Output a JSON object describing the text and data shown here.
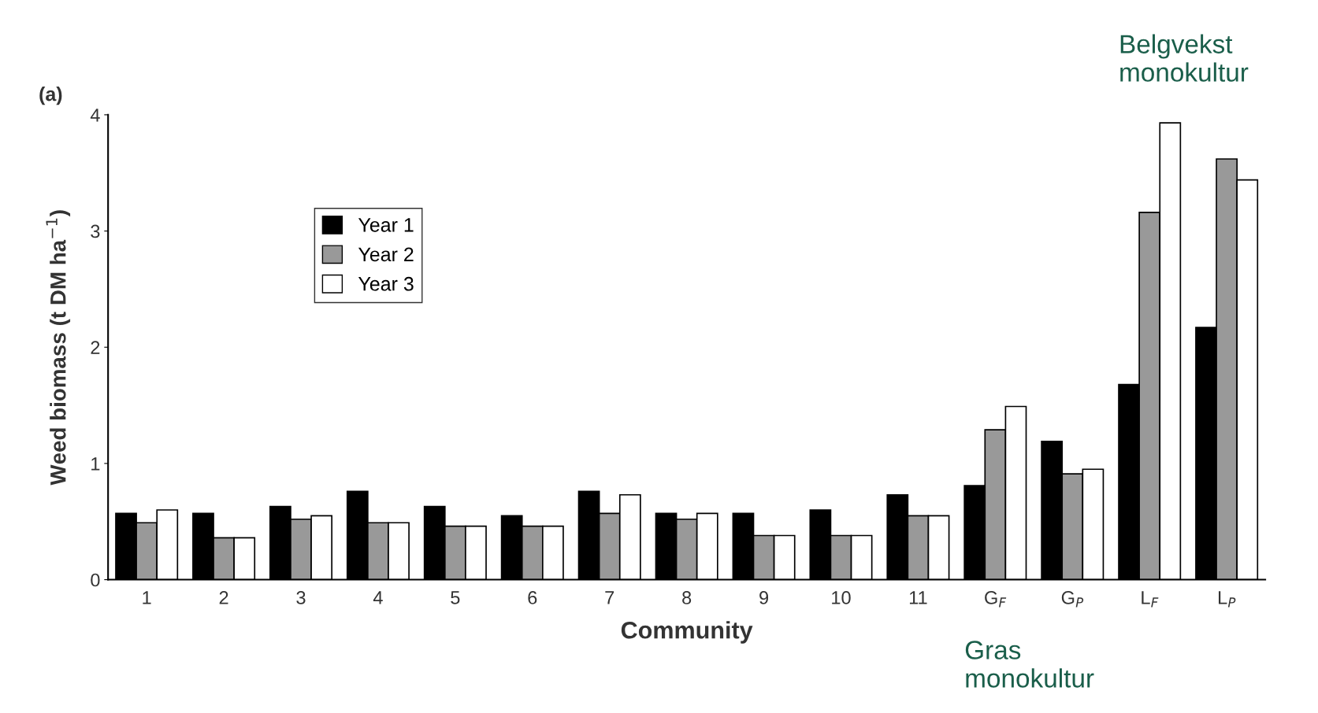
{
  "chart_data": {
    "type": "bar",
    "title": "(a)",
    "xlabel": "Community",
    "ylabel": "Weed biomass (t DM ha$^{−1}$)",
    "categories": [
      "1",
      "2",
      "3",
      "4",
      "5",
      "6",
      "7",
      "8",
      "9",
      "10",
      "11",
      "G$_{F}$",
      "G$_{P}$",
      "L$_{F}$",
      "L$_{P}$"
    ],
    "series": [
      {
        "name": "Year 1",
        "color": "#000000",
        "values": [
          0.57,
          0.57,
          0.63,
          0.76,
          0.63,
          0.55,
          0.76,
          0.57,
          0.57,
          0.6,
          0.73,
          0.81,
          1.19,
          1.68,
          2.17
        ]
      },
      {
        "name": "Year 2",
        "color": "#999999",
        "values": [
          0.49,
          0.36,
          0.52,
          0.49,
          0.46,
          0.46,
          0.57,
          0.52,
          0.38,
          0.38,
          0.55,
          1.29,
          0.91,
          3.16,
          3.62
        ]
      },
      {
        "name": "Year 3",
        "color": "#ffffff",
        "values": [
          0.6,
          0.36,
          0.55,
          0.49,
          0.46,
          0.46,
          0.73,
          0.57,
          0.38,
          0.38,
          0.55,
          1.49,
          0.95,
          3.93,
          3.44
        ]
      }
    ],
    "ylim": [
      0,
      4
    ],
    "yticks": [
      0,
      1,
      2,
      3,
      4
    ],
    "grid": false,
    "legend": "top left",
    "annotations": [
      "Gras\nmonokultur",
      "Belgvekst\nmonokultur"
    ]
  }
}
